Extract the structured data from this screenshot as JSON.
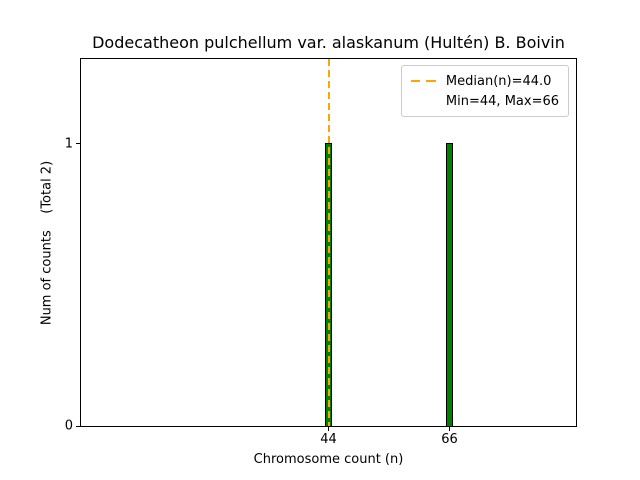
{
  "chart_data": {
    "type": "bar",
    "title": "Dodecatheon pulchellum var. alaskanum (Hultén) B. Boivin",
    "xlabel": "Chromosome count (n)",
    "ylabel": "Num of counts    (Total 2)",
    "categories": [
      "44",
      "66"
    ],
    "x_values": [
      44,
      66
    ],
    "values": [
      1,
      1
    ],
    "total_counts": 2,
    "ytick_labels": [
      "0",
      "1"
    ],
    "ytick_values": [
      0,
      1
    ],
    "xlim": [
      -1,
      89
    ],
    "ylim": [
      0,
      1.3
    ],
    "grid": false,
    "bar_color": "#008000",
    "bar_edge_color": "#000000",
    "median_line": {
      "value": 44.0,
      "color": "#FFA500",
      "style": "dashed"
    },
    "legend": {
      "position": "upper right",
      "entries": [
        {
          "label": "Median(n)=44.0",
          "line_color": "#FFA500",
          "line_style": "dashed"
        },
        {
          "label": "Min=44, Max=66",
          "line_color": null,
          "line_style": "none"
        }
      ]
    }
  }
}
